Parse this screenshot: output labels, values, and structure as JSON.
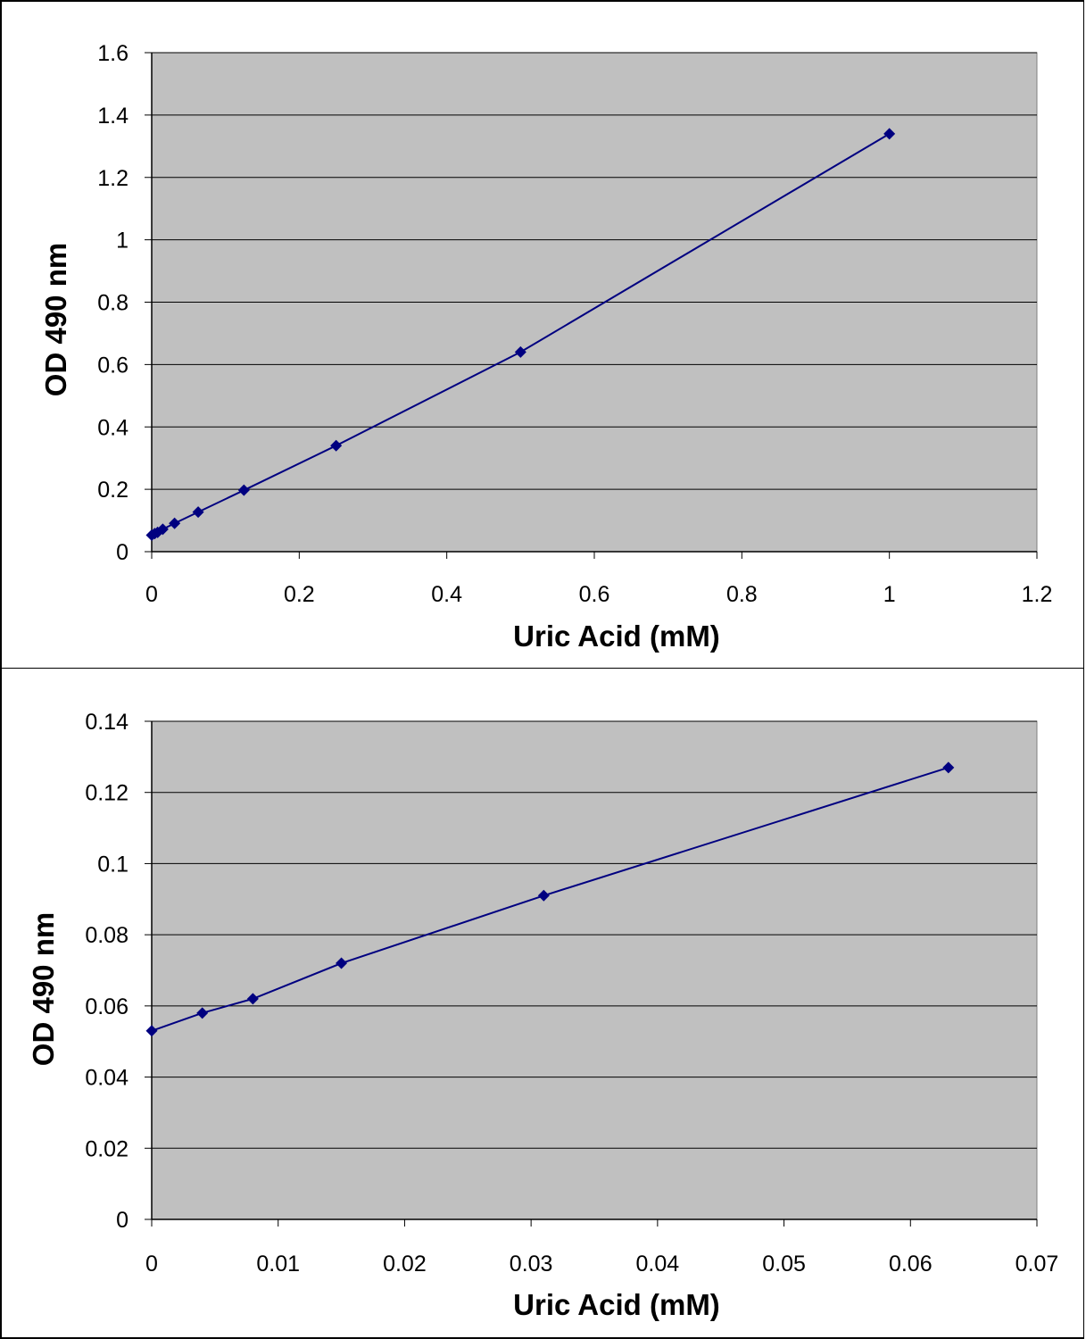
{
  "chart_data": [
    {
      "type": "line",
      "title": "",
      "xlabel": "Uric Acid (mM)",
      "ylabel": "OD 490 nm",
      "xlim": [
        0,
        1.2
      ],
      "ylim": [
        0,
        1.6
      ],
      "x_ticks": [
        "0",
        "0.2",
        "0.4",
        "0.6",
        "0.8",
        "1",
        "1.2"
      ],
      "y_ticks": [
        "0",
        "0.2",
        "0.4",
        "0.6",
        "0.8",
        "1",
        "1.2",
        "1.4",
        "1.6"
      ],
      "grid": "horizontal",
      "legend": "none",
      "colors": {
        "plot_background": "#c0c0c0",
        "series": "#000080",
        "grid": "#000000"
      },
      "series": [
        {
          "x": [
            0,
            0.004,
            0.008,
            0.015,
            0.031,
            0.063,
            0.125,
            0.25,
            0.5,
            1
          ],
          "y": [
            0.053,
            0.058,
            0.062,
            0.072,
            0.091,
            0.127,
            0.197,
            0.34,
            0.64,
            1.34
          ]
        }
      ]
    },
    {
      "type": "line",
      "title": "",
      "xlabel": "Uric Acid (mM)",
      "ylabel": "OD 490 nm",
      "xlim": [
        0,
        0.07
      ],
      "ylim": [
        0,
        0.14
      ],
      "x_ticks": [
        "0",
        "0.01",
        "0.02",
        "0.03",
        "0.04",
        "0.05",
        "0.06",
        "0.07"
      ],
      "y_ticks": [
        "0",
        "0.02",
        "0.04",
        "0.06",
        "0.08",
        "0.1",
        "0.12",
        "0.14"
      ],
      "grid": "horizontal",
      "legend": "none",
      "colors": {
        "plot_background": "#c0c0c0",
        "series": "#000080",
        "grid": "#000000"
      },
      "series": [
        {
          "x": [
            0,
            0.004,
            0.008,
            0.015,
            0.031,
            0.063
          ],
          "y": [
            0.053,
            0.058,
            0.062,
            0.072,
            0.091,
            0.127
          ]
        }
      ]
    }
  ]
}
